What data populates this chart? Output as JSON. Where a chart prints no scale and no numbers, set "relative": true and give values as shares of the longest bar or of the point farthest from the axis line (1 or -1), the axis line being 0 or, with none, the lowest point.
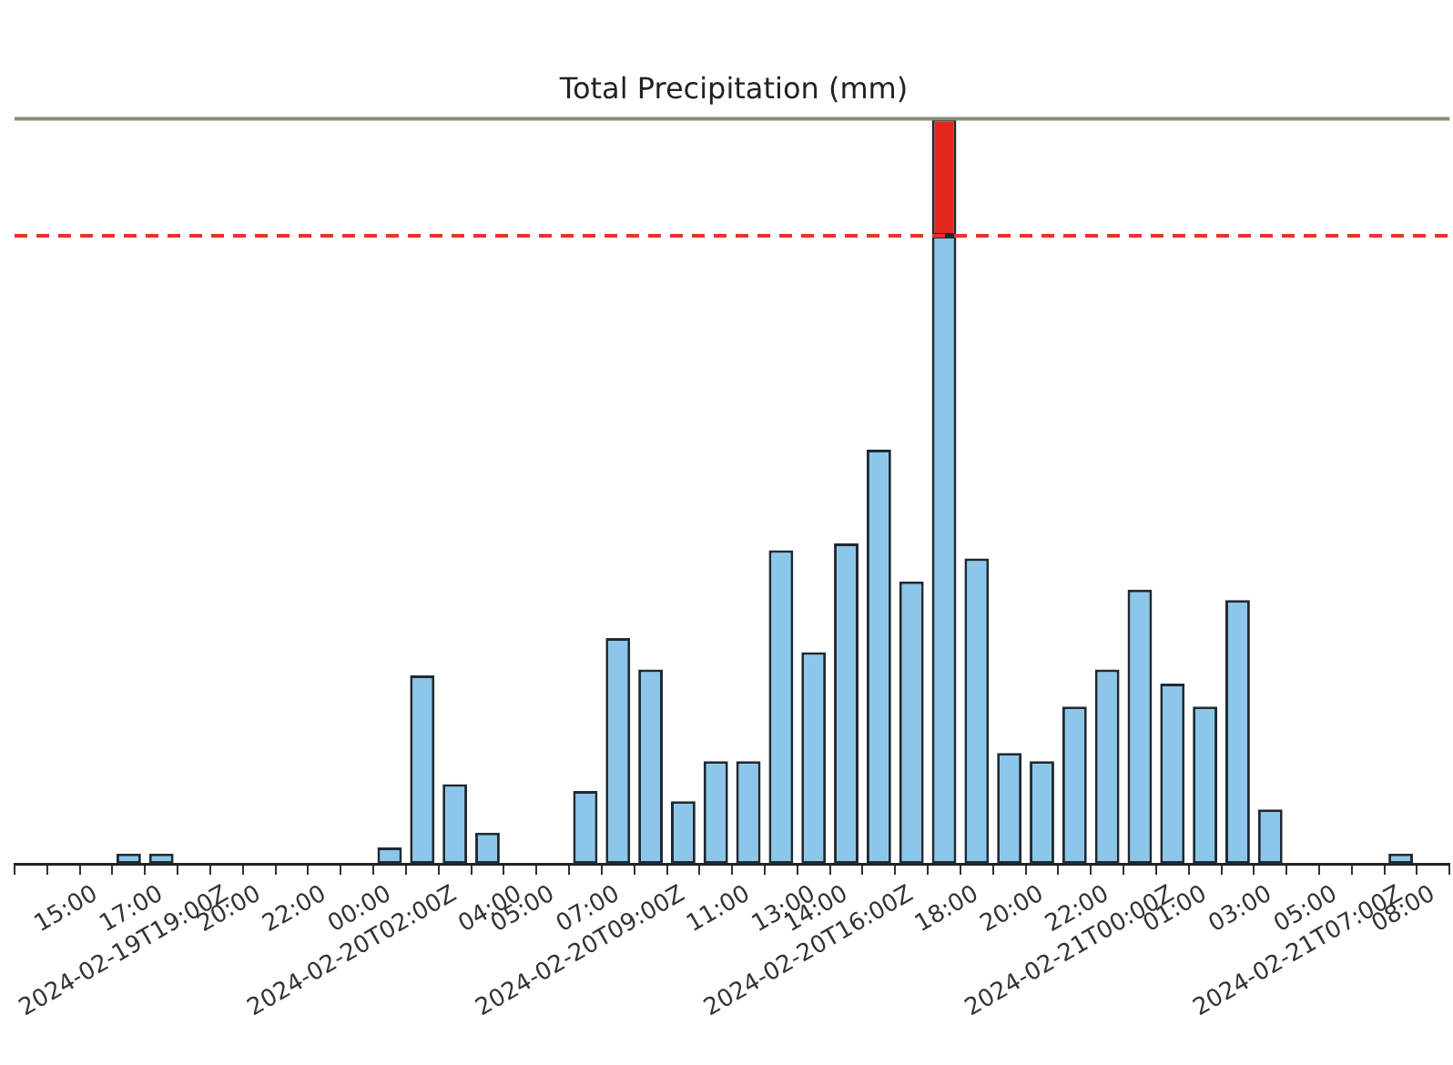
{
  "chart_data": {
    "type": "bar",
    "title": "Total Precipitation (mm)",
    "relative": true,
    "stacked": true,
    "grid": false,
    "legend": false,
    "categories": [
      null,
      null,
      "15:00",
      null,
      "17:00",
      null,
      "2024-02-19T19:00Z",
      "20:00",
      null,
      "22:00",
      null,
      "00:00",
      null,
      "2024-02-20T02:00Z",
      null,
      "04:00",
      "05:00",
      null,
      "07:00",
      null,
      "2024-02-20T09:00Z",
      null,
      "11:00",
      null,
      "13:00",
      "14:00",
      null,
      "2024-02-20T16:00Z",
      null,
      "18:00",
      null,
      "20:00",
      null,
      "22:00",
      null,
      "2024-02-21T00:00Z",
      "01:00",
      null,
      "03:00",
      null,
      "05:00",
      null,
      "2024-02-21T07:00Z",
      "08:00"
    ],
    "series": [
      {
        "color": "#8cc6ea",
        "values": [
          0,
          0,
          0,
          0.014,
          0.014,
          0,
          0,
          0,
          0,
          0,
          0,
          0.022,
          0.253,
          0.107,
          0.042,
          0,
          0,
          0.098,
          0.303,
          0.261,
          0.084,
          0.138,
          0.138,
          0.421,
          0.284,
          0.43,
          0.556,
          0.379,
          0.843,
          0.41,
          0.149,
          0.138,
          0.211,
          0.261,
          0.368,
          0.242,
          0.211,
          0.354,
          0.073,
          0,
          0,
          0,
          0.014,
          0
        ]
      },
      {
        "color": "#e5281e",
        "values": [
          null,
          null,
          null,
          null,
          null,
          null,
          null,
          null,
          null,
          null,
          null,
          null,
          null,
          null,
          null,
          null,
          null,
          null,
          null,
          null,
          null,
          null,
          null,
          null,
          null,
          null,
          null,
          null,
          0.157,
          null,
          null,
          null,
          null,
          null,
          null,
          null,
          null,
          null,
          null,
          null,
          null,
          null,
          null,
          null
        ]
      }
    ],
    "ref_lines": [
      {
        "axis": "y",
        "value": 0.843,
        "color": "#e8332a",
        "line_style": "dashed"
      }
    ]
  }
}
